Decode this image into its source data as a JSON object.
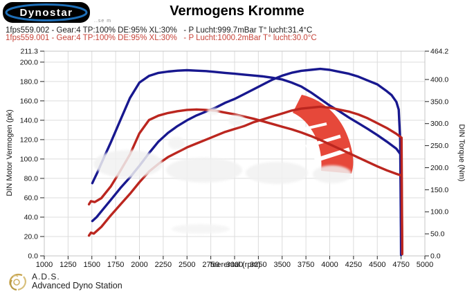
{
  "header": {
    "logo_text": "Dynostar",
    "logo_subtext": "..se m",
    "title": "Vermogens Kromme"
  },
  "info_lines": {
    "line1": "1fps559.002 - Gear:4 TP:100% DE:95% XL:30%   - P Lucht:999.7mBar T° lucht:31.4°C",
    "line2": "1fps559.001 - Gear:4 TP:100% DE:95% XL:30%   - P Lucht:1000.2mBar T° lucht:30.0°C",
    "line1_color": "#1b1b1b",
    "line2_color": "#c7443a"
  },
  "footer": {
    "abbr": "A.D.S.",
    "name": "Advanced Dyno Station"
  },
  "colors": {
    "run_002": "#18188f",
    "run_001": "#bb261f",
    "watermark_red": "#e6483a",
    "grid": "#dcdcdc",
    "plot_border": "#c4c4c4"
  },
  "chart_data": {
    "type": "line",
    "title": "Vermogens Kromme",
    "xlabel": "Toerental (rpm)",
    "grid": true,
    "legend": false,
    "x_range": [
      1000,
      5000
    ],
    "x_ticks": [
      1000,
      1250,
      1500,
      1750,
      2000,
      2250,
      2500,
      2750,
      3000,
      3250,
      3500,
      3750,
      4000,
      4250,
      4500,
      4750,
      5000
    ],
    "left_axis": {
      "label": "DIN Motor Vermogen (pk)",
      "range": [
        0,
        211.3
      ],
      "tick_values": [
        0,
        20,
        40,
        60,
        80,
        100,
        120,
        140,
        160,
        180,
        200,
        211.3
      ],
      "tick_labels": [
        "0.0",
        "20.0",
        "40.0",
        "60.0",
        "80.0",
        "100.0",
        "120.0",
        "140.0",
        "160.0",
        "180.0",
        "200.0",
        "211.3"
      ]
    },
    "right_axis": {
      "label": "DIN Torque (Nm)",
      "range": [
        0,
        464.2
      ],
      "tick_values": [
        0,
        50,
        100,
        150,
        200,
        250,
        300,
        350,
        400,
        464.2
      ],
      "tick_labels": [
        "0.0",
        "50.0",
        "100.0",
        "150.0",
        "200.0",
        "250.0",
        "300.0",
        "350.0",
        "400.0",
        "464.2"
      ]
    },
    "series": [
      {
        "name": "power-run-1fps559.002",
        "axis": "left",
        "unit": "pk",
        "color": "#18188f",
        "layer": "under",
        "points": [
          [
            1505,
            36
          ],
          [
            1550,
            40
          ],
          [
            1600,
            46
          ],
          [
            1700,
            58
          ],
          [
            1800,
            70
          ],
          [
            1900,
            81
          ],
          [
            2000,
            93
          ],
          [
            2100,
            106
          ],
          [
            2200,
            118
          ],
          [
            2300,
            127
          ],
          [
            2400,
            134
          ],
          [
            2500,
            140
          ],
          [
            2600,
            145
          ],
          [
            2700,
            149
          ],
          [
            2800,
            153
          ],
          [
            2900,
            158
          ],
          [
            3000,
            162
          ],
          [
            3100,
            167
          ],
          [
            3200,
            172
          ],
          [
            3300,
            177
          ],
          [
            3400,
            182
          ],
          [
            3500,
            186
          ],
          [
            3600,
            189
          ],
          [
            3700,
            191
          ],
          [
            3800,
            192
          ],
          [
            3900,
            193
          ],
          [
            4000,
            192
          ],
          [
            4100,
            190
          ],
          [
            4200,
            188
          ],
          [
            4300,
            185
          ],
          [
            4400,
            181
          ],
          [
            4500,
            177
          ],
          [
            4600,
            170
          ],
          [
            4650,
            166
          ],
          [
            4700,
            159
          ],
          [
            4725,
            151
          ],
          [
            4740,
            120
          ],
          [
            4748,
            30
          ],
          [
            4750,
            1
          ]
        ]
      },
      {
        "name": "torque-run-1fps559.002",
        "axis": "right",
        "unit": "Nm",
        "color": "#18188f",
        "layer": "under",
        "points": [
          [
            1505,
            165
          ],
          [
            1520,
            172
          ],
          [
            1560,
            190
          ],
          [
            1600,
            210
          ],
          [
            1700,
            258
          ],
          [
            1800,
            308
          ],
          [
            1900,
            358
          ],
          [
            2000,
            393
          ],
          [
            2100,
            408
          ],
          [
            2200,
            415
          ],
          [
            2300,
            418
          ],
          [
            2400,
            420
          ],
          [
            2500,
            421
          ],
          [
            2600,
            420
          ],
          [
            2700,
            419
          ],
          [
            2800,
            417
          ],
          [
            2900,
            415
          ],
          [
            3000,
            413
          ],
          [
            3100,
            411
          ],
          [
            3200,
            409
          ],
          [
            3300,
            407
          ],
          [
            3400,
            404
          ],
          [
            3500,
            400
          ],
          [
            3600,
            393
          ],
          [
            3700,
            384
          ],
          [
            3800,
            371
          ],
          [
            3900,
            356
          ],
          [
            4000,
            341
          ],
          [
            4100,
            328
          ],
          [
            4200,
            314
          ],
          [
            4300,
            301
          ],
          [
            4400,
            288
          ],
          [
            4500,
            274
          ],
          [
            4600,
            259
          ],
          [
            4700,
            243
          ],
          [
            4745,
            230
          ],
          [
            4752,
            8
          ]
        ]
      },
      {
        "name": "power-run-1fps559.001",
        "axis": "left",
        "unit": "pk",
        "color": "#bb261f",
        "layer": "over",
        "points": [
          [
            1470,
            21
          ],
          [
            1490,
            24
          ],
          [
            1520,
            23
          ],
          [
            1600,
            30
          ],
          [
            1700,
            42
          ],
          [
            1800,
            53
          ],
          [
            1900,
            64
          ],
          [
            2000,
            76
          ],
          [
            2100,
            87
          ],
          [
            2200,
            95
          ],
          [
            2300,
            102
          ],
          [
            2400,
            107
          ],
          [
            2500,
            112
          ],
          [
            2600,
            116
          ],
          [
            2700,
            120
          ],
          [
            2800,
            124
          ],
          [
            2900,
            128
          ],
          [
            3000,
            131
          ],
          [
            3100,
            134
          ],
          [
            3200,
            138
          ],
          [
            3300,
            141
          ],
          [
            3400,
            144
          ],
          [
            3500,
            147
          ],
          [
            3600,
            150
          ],
          [
            3700,
            152
          ],
          [
            3800,
            153
          ],
          [
            3900,
            154
          ],
          [
            4000,
            153
          ],
          [
            4100,
            151
          ],
          [
            4200,
            149
          ],
          [
            4300,
            146
          ],
          [
            4400,
            142
          ],
          [
            4500,
            137
          ],
          [
            4600,
            132
          ],
          [
            4700,
            126
          ],
          [
            4755,
            122
          ],
          [
            4762,
            3
          ]
        ]
      },
      {
        "name": "torque-run-1fps559.001",
        "axis": "right",
        "unit": "Nm",
        "color": "#bb261f",
        "layer": "over",
        "points": [
          [
            1470,
            117
          ],
          [
            1490,
            124
          ],
          [
            1530,
            122
          ],
          [
            1600,
            131
          ],
          [
            1700,
            158
          ],
          [
            1800,
            193
          ],
          [
            1900,
            230
          ],
          [
            2000,
            278
          ],
          [
            2100,
            308
          ],
          [
            2200,
            318
          ],
          [
            2300,
            324
          ],
          [
            2400,
            328
          ],
          [
            2500,
            331
          ],
          [
            2600,
            332
          ],
          [
            2700,
            331
          ],
          [
            2800,
            329
          ],
          [
            2900,
            325
          ],
          [
            3000,
            321
          ],
          [
            3100,
            316
          ],
          [
            3200,
            311
          ],
          [
            3300,
            305
          ],
          [
            3400,
            299
          ],
          [
            3500,
            293
          ],
          [
            3600,
            287
          ],
          [
            3700,
            280
          ],
          [
            3800,
            272
          ],
          [
            3900,
            263
          ],
          [
            4000,
            253
          ],
          [
            4100,
            243
          ],
          [
            4200,
            233
          ],
          [
            4300,
            223
          ],
          [
            4400,
            213
          ],
          [
            4500,
            203
          ],
          [
            4600,
            194
          ],
          [
            4700,
            186
          ],
          [
            4755,
            182
          ],
          [
            4762,
            4
          ]
        ]
      }
    ]
  }
}
